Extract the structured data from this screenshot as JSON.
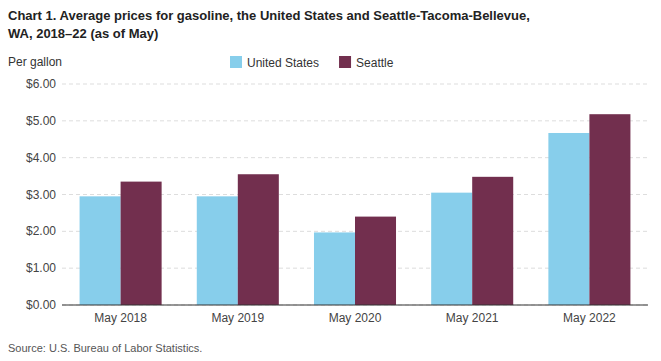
{
  "chart_data": {
    "type": "bar",
    "title": "Chart 1. Average prices for gasoline, the United States and Seattle-Tacoma-Bellevue,",
    "subtitle": "WA, 2018–22 (as of May)",
    "ylabel": "Per gallon",
    "source": "Source: U.S. Bureau of Labor Statistics.",
    "categories": [
      "May 2018",
      "May 2019",
      "May 2020",
      "May 2021",
      "May 2022"
    ],
    "series": [
      {
        "name": "United States",
        "color": "#87CEEB",
        "values": [
          2.95,
          2.95,
          1.97,
          3.05,
          4.67
        ]
      },
      {
        "name": "Seattle",
        "color": "#722F4E",
        "values": [
          3.35,
          3.55,
          2.4,
          3.48,
          5.18
        ]
      }
    ],
    "ylim": [
      0,
      6.0
    ],
    "yticks": [
      {
        "value": 0.0,
        "label": "$0.00"
      },
      {
        "value": 1.0,
        "label": "$1.00"
      },
      {
        "value": 2.0,
        "label": "$2.00"
      },
      {
        "value": 3.0,
        "label": "$3.00"
      },
      {
        "value": 4.0,
        "label": "$4.00"
      },
      {
        "value": 5.0,
        "label": "$5.00"
      },
      {
        "value": 6.0,
        "label": "$6.00"
      }
    ],
    "grid": true,
    "legend": "top"
  }
}
